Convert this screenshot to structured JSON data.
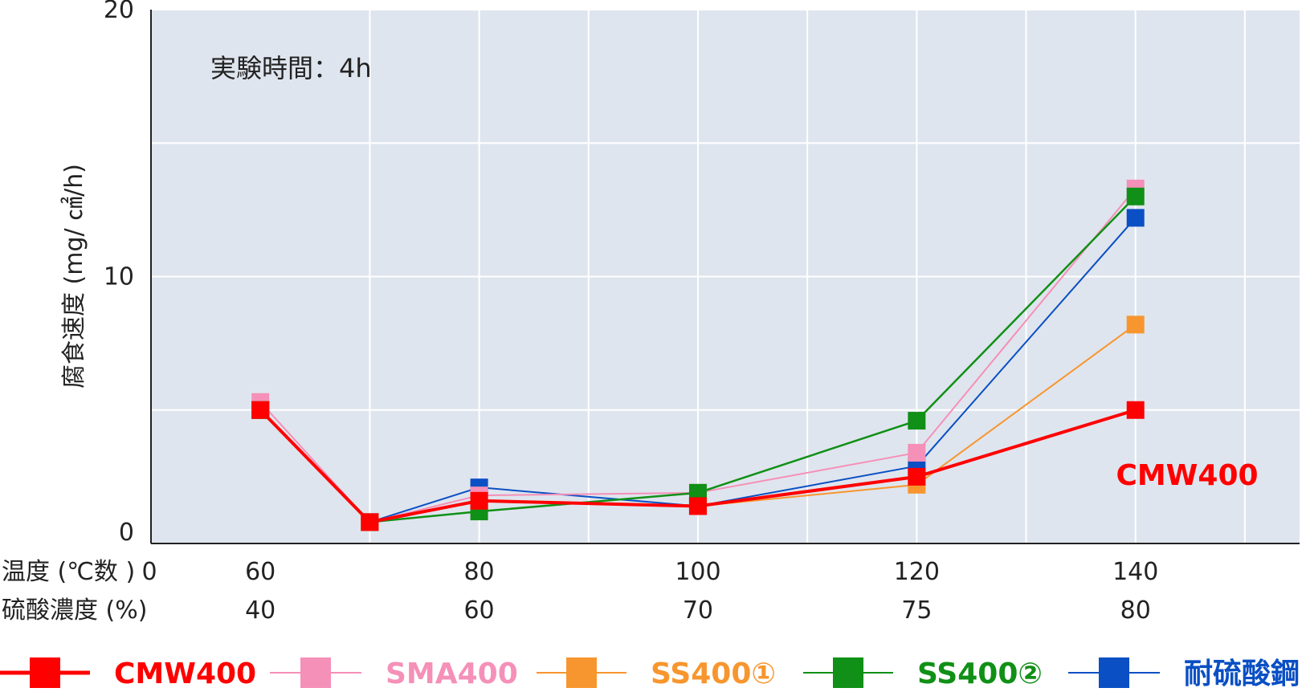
{
  "chart_data": {
    "type": "line",
    "annotation": "実験時間：4h",
    "ylabel": "腐食速度 (mg/ ㎠/h)",
    "ylim": [
      0,
      20
    ],
    "yticks": [
      "0",
      "10",
      "20"
    ],
    "x_row1_label": "温度 (℃数 )",
    "x_row2_label": "硫酸濃度 (%)",
    "x_axis_zero": "0",
    "xlim": [
      50,
      155
    ],
    "ticks_row1": [
      {
        "x": 60,
        "label": "60"
      },
      {
        "x": 80,
        "label": "80"
      },
      {
        "x": 100,
        "label": "100"
      },
      {
        "x": 120,
        "label": "120"
      },
      {
        "x": 140,
        "label": "140"
      }
    ],
    "ticks_row2": [
      {
        "x": 60,
        "label": "40"
      },
      {
        "x": 80,
        "label": "60"
      },
      {
        "x": 100,
        "label": "70"
      },
      {
        "x": 120,
        "label": "75"
      },
      {
        "x": 140,
        "label": "80"
      }
    ],
    "series_label": "CMW400",
    "series": [
      {
        "name": "CMW400",
        "color": "#ff0000",
        "line_width": 4,
        "points": [
          [
            60,
            5.0
          ],
          [
            70,
            0.8
          ],
          [
            80,
            1.6
          ],
          [
            100,
            1.4
          ],
          [
            120,
            2.5
          ],
          [
            140,
            5.0
          ]
        ]
      },
      {
        "name": "SMA400",
        "color": "#f590b8",
        "line_width": 2,
        "points": [
          [
            60,
            5.3
          ],
          [
            70,
            0.8
          ],
          [
            80,
            1.8
          ],
          [
            100,
            1.9
          ],
          [
            120,
            3.4
          ],
          [
            140,
            13.3
          ]
        ]
      },
      {
        "name": "SS400①",
        "color": "#f7962e",
        "line_width": 2,
        "points": [
          [
            60,
            5.0
          ],
          [
            70,
            0.8
          ],
          [
            80,
            1.6
          ],
          [
            100,
            1.4
          ],
          [
            120,
            2.2
          ],
          [
            140,
            8.2
          ]
        ]
      },
      {
        "name": "SS400②",
        "color": "#109016",
        "line_width": 2.5,
        "points": [
          [
            60,
            5.0
          ],
          [
            70,
            0.8
          ],
          [
            80,
            1.2
          ],
          [
            100,
            1.9
          ],
          [
            120,
            4.6
          ],
          [
            140,
            13.0
          ]
        ]
      },
      {
        "name": "耐硫酸鋼",
        "color": "#0a4fc4",
        "line_width": 2,
        "points": [
          [
            60,
            5.0
          ],
          [
            70,
            0.8
          ],
          [
            80,
            2.1
          ],
          [
            100,
            1.4
          ],
          [
            120,
            2.9
          ],
          [
            140,
            12.2
          ]
        ]
      }
    ],
    "draw_order": [
      4,
      2,
      1,
      3,
      0
    ],
    "legend_position": "bottom",
    "grid": true,
    "background": "#dfe5ee",
    "grid_color": "#ffffff"
  }
}
